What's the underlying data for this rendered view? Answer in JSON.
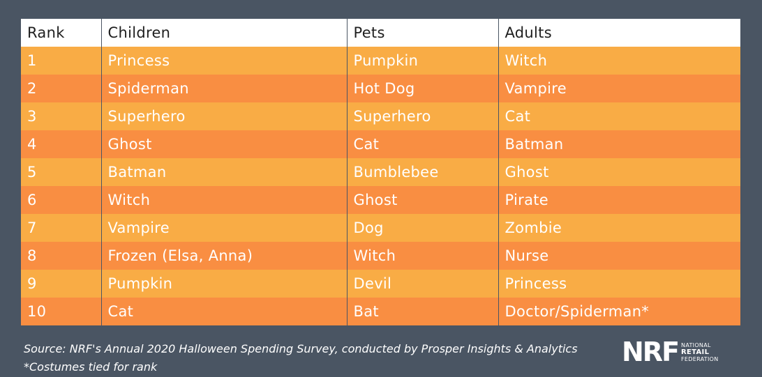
{
  "chart_data": {
    "type": "table",
    "columns": [
      "Rank",
      "Children",
      "Pets",
      "Adults"
    ],
    "rows": [
      [
        "1",
        "Princess",
        "Pumpkin",
        "Witch"
      ],
      [
        "2",
        "Spiderman",
        "Hot Dog",
        "Vampire"
      ],
      [
        "3",
        "Superhero",
        "Superhero",
        "Cat"
      ],
      [
        "4",
        "Ghost",
        "Cat",
        "Batman"
      ],
      [
        "5",
        "Batman",
        "Bumblebee",
        "Ghost"
      ],
      [
        "6",
        "Witch",
        "Ghost",
        "Pirate"
      ],
      [
        "7",
        "Vampire",
        "Dog",
        "Zombie"
      ],
      [
        "8",
        "Frozen (Elsa, Anna)",
        "Witch",
        "Nurse"
      ],
      [
        "9",
        "Pumpkin",
        "Devil",
        "Princess"
      ],
      [
        "10",
        "Cat",
        "Bat",
        "Doctor/Spiderman*"
      ]
    ]
  },
  "footer": {
    "source": "Source: NRF's Annual 2020 Halloween Spending Survey, conducted by Prosper Insights & Analytics",
    "note": "*Costumes tied for rank"
  },
  "logo": {
    "mark": "NRF",
    "line1": "NATIONAL",
    "line2": "RETAIL",
    "line3": "FEDERATION"
  },
  "colors": {
    "background": "#4a5563",
    "header": "#ffffff",
    "row_light": "#f9ac45",
    "row_dark": "#f98e42"
  }
}
